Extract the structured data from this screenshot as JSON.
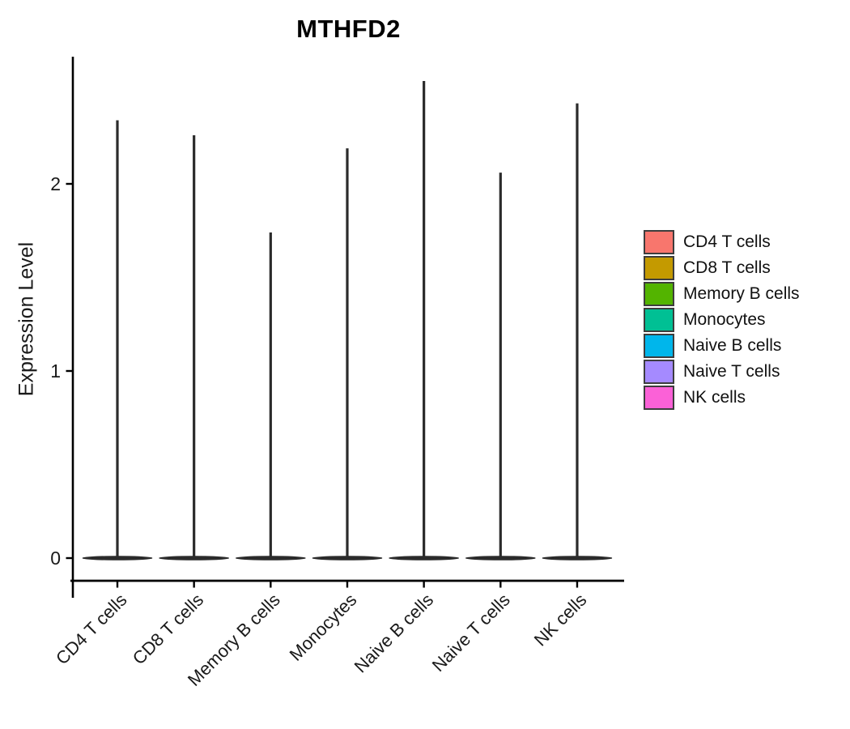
{
  "title": "MTHFD2",
  "axes": {
    "ylabel": "Expression Level",
    "ytick_labels": [
      "0",
      "1",
      "2"
    ]
  },
  "chart_data": {
    "type": "violin",
    "title": "MTHFD2",
    "xlabel": "",
    "ylabel": "Expression Level",
    "categories": [
      "CD4 T cells",
      "CD8 T cells",
      "Memory B cells",
      "Monocytes",
      "Naive B cells",
      "Naive T cells",
      "NK cells"
    ],
    "series": [
      {
        "name": "CD4 T cells",
        "color": "#F8766D",
        "max_expression": 2.34,
        "mode_expression": 0
      },
      {
        "name": "CD8 T cells",
        "color": "#C49A00",
        "max_expression": 2.26,
        "mode_expression": 0
      },
      {
        "name": "Memory B cells",
        "color": "#53B400",
        "max_expression": 1.74,
        "mode_expression": 0
      },
      {
        "name": "Monocytes",
        "color": "#00C094",
        "max_expression": 2.19,
        "mode_expression": 0
      },
      {
        "name": "Naive B cells",
        "color": "#00B6EB",
        "max_expression": 2.55,
        "mode_expression": 0
      },
      {
        "name": "Naive T cells",
        "color": "#A58AFF",
        "max_expression": 2.06,
        "mode_expression": 0
      },
      {
        "name": "NK cells",
        "color": "#FB61D7",
        "max_expression": 2.43,
        "mode_expression": 0
      }
    ],
    "yticks": [
      0,
      1,
      2
    ],
    "ylim": [
      -0.12,
      2.68
    ],
    "grid": false,
    "legend_position": "right",
    "shape_note": "Each violin collapses to a thin vertical spike: nearly all cells at 0 expression (wide flat lens at baseline) with a narrow tail reaching max_expression."
  },
  "legend": {
    "items": [
      {
        "label": "CD4 T cells",
        "color": "#F8766D"
      },
      {
        "label": "CD8 T cells",
        "color": "#C49A00"
      },
      {
        "label": "Memory B cells",
        "color": "#53B400"
      },
      {
        "label": "Monocytes",
        "color": "#00C094"
      },
      {
        "label": "Naive B cells",
        "color": "#00B6EB"
      },
      {
        "label": "Naive T cells",
        "color": "#A58AFF"
      },
      {
        "label": "NK cells",
        "color": "#FB61D7"
      }
    ]
  },
  "colors": {
    "axis_line": "#000000",
    "tick_text": "#1a1a1a",
    "violin_outline": "#2b2b2b",
    "background": "#ffffff"
  }
}
